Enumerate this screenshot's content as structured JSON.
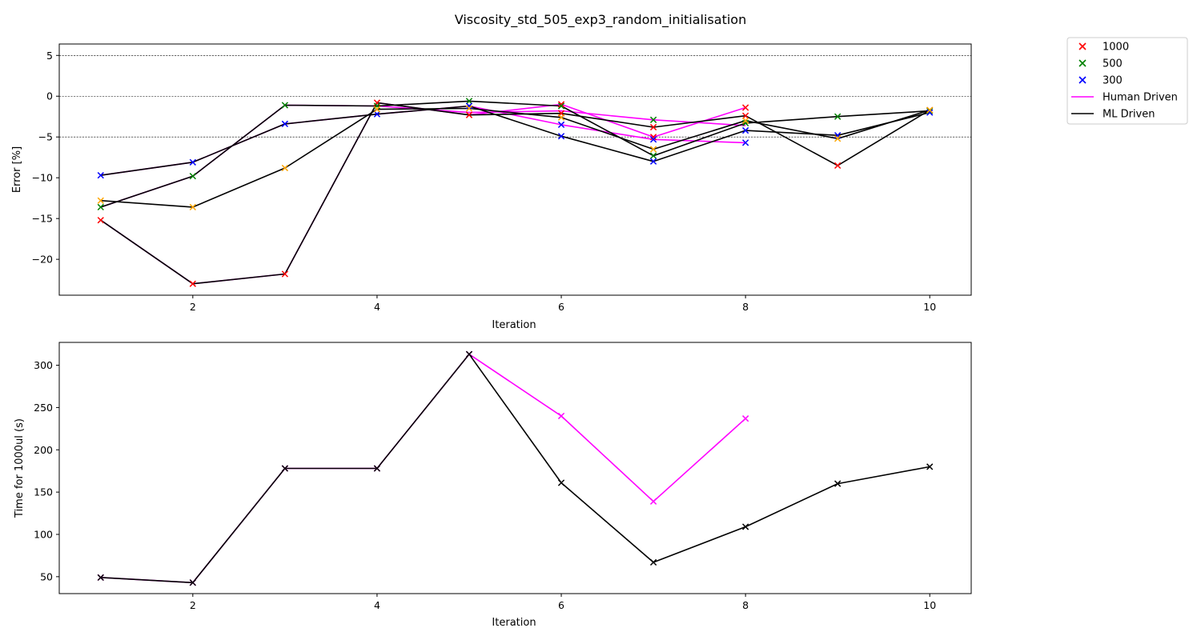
{
  "figure": {
    "title": "Viscosity_std_505_exp3_random_initialisation"
  },
  "colors": {
    "human": "#ff00ff",
    "ml": "#000000",
    "vol1000": "#ff0000",
    "vol500": "#008000",
    "vol300": "#0000ff",
    "other": "#ffa500",
    "refline": "#000000"
  },
  "legend": {
    "position": "outside-right",
    "items": [
      {
        "label": "1000",
        "kind": "marker",
        "color": "#ff0000"
      },
      {
        "label": "500",
        "kind": "marker",
        "color": "#008000"
      },
      {
        "label": "300",
        "kind": "marker",
        "color": "#0000ff"
      },
      {
        "label": "Human Driven",
        "kind": "line",
        "color": "#ff00ff"
      },
      {
        "label": "ML Driven",
        "kind": "line",
        "color": "#000000"
      }
    ]
  },
  "chart_data": [
    {
      "type": "line",
      "xlabel": "Iteration",
      "ylabel": "Error [%]",
      "xlim": [
        0.55,
        10.45
      ],
      "ylim": [
        -24.4,
        6.4
      ],
      "xticks": [
        2,
        4,
        6,
        8,
        10
      ],
      "yticks": [
        5,
        0,
        -5,
        -10,
        -15,
        -20
      ],
      "reference_lines": [
        5,
        0,
        -5
      ],
      "lines": [
        {
          "role": "human",
          "points": [
            [
              1,
              -15.2
            ],
            [
              2,
              -23.0
            ],
            [
              3,
              -21.8
            ],
            [
              4,
              -0.8
            ],
            [
              5,
              -2.3
            ],
            [
              6,
              -1.0
            ],
            [
              7,
              -5.0
            ],
            [
              8,
              -1.4
            ]
          ]
        },
        {
          "role": "human",
          "points": [
            [
              1,
              -13.6
            ],
            [
              2,
              -9.8
            ],
            [
              3,
              -1.1
            ],
            [
              4,
              -1.2
            ],
            [
              5,
              -2.0
            ],
            [
              6,
              -1.8
            ],
            [
              7,
              -2.9
            ],
            [
              8,
              -3.6
            ]
          ]
        },
        {
          "role": "human",
          "points": [
            [
              1,
              -9.7
            ],
            [
              2,
              -8.1
            ],
            [
              3,
              -3.4
            ],
            [
              4,
              -2.2
            ],
            [
              5,
              -1.2
            ],
            [
              6,
              -3.5
            ],
            [
              7,
              -5.3
            ],
            [
              8,
              -5.7
            ]
          ]
        },
        {
          "role": "ml",
          "points": [
            [
              1,
              -15.2
            ],
            [
              2,
              -23.0
            ],
            [
              3,
              -21.8
            ],
            [
              4,
              -0.8
            ],
            [
              5,
              -2.3
            ],
            [
              6,
              -2.1
            ],
            [
              7,
              -3.8
            ],
            [
              8,
              -2.4
            ],
            [
              9,
              -8.5
            ],
            [
              10,
              -1.7
            ]
          ]
        },
        {
          "role": "ml",
          "points": [
            [
              1,
              -13.6
            ],
            [
              2,
              -9.8
            ],
            [
              3,
              -1.1
            ],
            [
              4,
              -1.2
            ],
            [
              5,
              -0.6
            ],
            [
              6,
              -1.2
            ],
            [
              7,
              -7.3
            ],
            [
              8,
              -3.3
            ],
            [
              9,
              -2.5
            ],
            [
              10,
              -1.8
            ]
          ]
        },
        {
          "role": "ml",
          "points": [
            [
              1,
              -9.7
            ],
            [
              2,
              -8.1
            ],
            [
              3,
              -3.4
            ],
            [
              4,
              -2.2
            ],
            [
              5,
              -1.2
            ],
            [
              6,
              -4.9
            ],
            [
              7,
              -8.0
            ],
            [
              8,
              -4.2
            ],
            [
              9,
              -4.8
            ],
            [
              10,
              -2.0
            ]
          ]
        },
        {
          "role": "ml",
          "points": [
            [
              1,
              -12.8
            ],
            [
              2,
              -13.6
            ],
            [
              3,
              -8.8
            ],
            [
              4,
              -1.6
            ],
            [
              5,
              -1.5
            ],
            [
              6,
              -2.6
            ],
            [
              7,
              -6.5
            ],
            [
              8,
              -3.0
            ],
            [
              9,
              -5.2
            ],
            [
              10,
              -1.7
            ]
          ]
        }
      ],
      "markers": [
        {
          "color": "#ff0000",
          "points": [
            [
              1,
              -15.2
            ],
            [
              2,
              -23.0
            ],
            [
              3,
              -21.8
            ],
            [
              4,
              -0.8
            ],
            [
              5,
              -2.3
            ],
            [
              6,
              -1.0
            ],
            [
              6,
              -2.1
            ],
            [
              7,
              -5.0
            ],
            [
              7,
              -3.8
            ],
            [
              8,
              -1.4
            ],
            [
              8,
              -2.4
            ],
            [
              9,
              -8.5
            ],
            [
              10,
              -1.7
            ]
          ]
        },
        {
          "color": "#008000",
          "points": [
            [
              1,
              -13.6
            ],
            [
              2,
              -9.8
            ],
            [
              3,
              -1.1
            ],
            [
              4,
              -1.2
            ],
            [
              5,
              -0.6
            ],
            [
              6,
              -1.2
            ],
            [
              7,
              -2.9
            ],
            [
              7,
              -7.3
            ],
            [
              8,
              -3.3
            ],
            [
              9,
              -2.5
            ],
            [
              10,
              -1.8
            ]
          ]
        },
        {
          "color": "#0000ff",
          "points": [
            [
              1,
              -9.7
            ],
            [
              2,
              -8.1
            ],
            [
              3,
              -3.4
            ],
            [
              4,
              -2.2
            ],
            [
              5,
              -1.2
            ],
            [
              6,
              -3.5
            ],
            [
              6,
              -4.9
            ],
            [
              7,
              -5.3
            ],
            [
              7,
              -8.0
            ],
            [
              8,
              -5.7
            ],
            [
              8,
              -4.2
            ],
            [
              9,
              -4.8
            ],
            [
              10,
              -2.0
            ]
          ]
        },
        {
          "color": "#ffa500",
          "points": [
            [
              1,
              -12.8
            ],
            [
              2,
              -13.6
            ],
            [
              3,
              -8.8
            ],
            [
              4,
              -1.6
            ],
            [
              5,
              -1.5
            ],
            [
              6,
              -2.6
            ],
            [
              7,
              -6.5
            ],
            [
              8,
              -3.0
            ],
            [
              9,
              -5.2
            ],
            [
              10,
              -1.7
            ]
          ]
        }
      ]
    },
    {
      "type": "line",
      "xlabel": "Iteration",
      "ylabel": "Time for 1000ul (s)",
      "xlim": [
        0.55,
        10.45
      ],
      "ylim": [
        30,
        327
      ],
      "xticks": [
        2,
        4,
        6,
        8,
        10
      ],
      "yticks": [
        300,
        250,
        200,
        150,
        100,
        50
      ],
      "reference_lines": [],
      "lines": [
        {
          "role": "human",
          "points": [
            [
              1,
              49
            ],
            [
              2,
              43
            ],
            [
              3,
              178
            ],
            [
              4,
              178
            ],
            [
              5,
              313
            ],
            [
              6,
              240
            ],
            [
              7,
              139
            ],
            [
              8,
              237
            ]
          ]
        },
        {
          "role": "ml",
          "points": [
            [
              1,
              49
            ],
            [
              2,
              43
            ],
            [
              3,
              178
            ],
            [
              4,
              178
            ],
            [
              5,
              313
            ],
            [
              6,
              161
            ],
            [
              7,
              67
            ],
            [
              8,
              109
            ],
            [
              9,
              160
            ],
            [
              10,
              180
            ]
          ]
        }
      ],
      "markers": [
        {
          "color": "#ff00ff",
          "points": [
            [
              1,
              49
            ],
            [
              2,
              43
            ],
            [
              3,
              178
            ],
            [
              4,
              178
            ],
            [
              5,
              313
            ],
            [
              6,
              240
            ],
            [
              7,
              139
            ],
            [
              8,
              237
            ]
          ]
        },
        {
          "color": "#000000",
          "points": [
            [
              1,
              49
            ],
            [
              2,
              43
            ],
            [
              3,
              178
            ],
            [
              4,
              178
            ],
            [
              5,
              313
            ],
            [
              6,
              161
            ],
            [
              7,
              67
            ],
            [
              8,
              109
            ],
            [
              9,
              160
            ],
            [
              10,
              180
            ]
          ]
        }
      ]
    }
  ]
}
